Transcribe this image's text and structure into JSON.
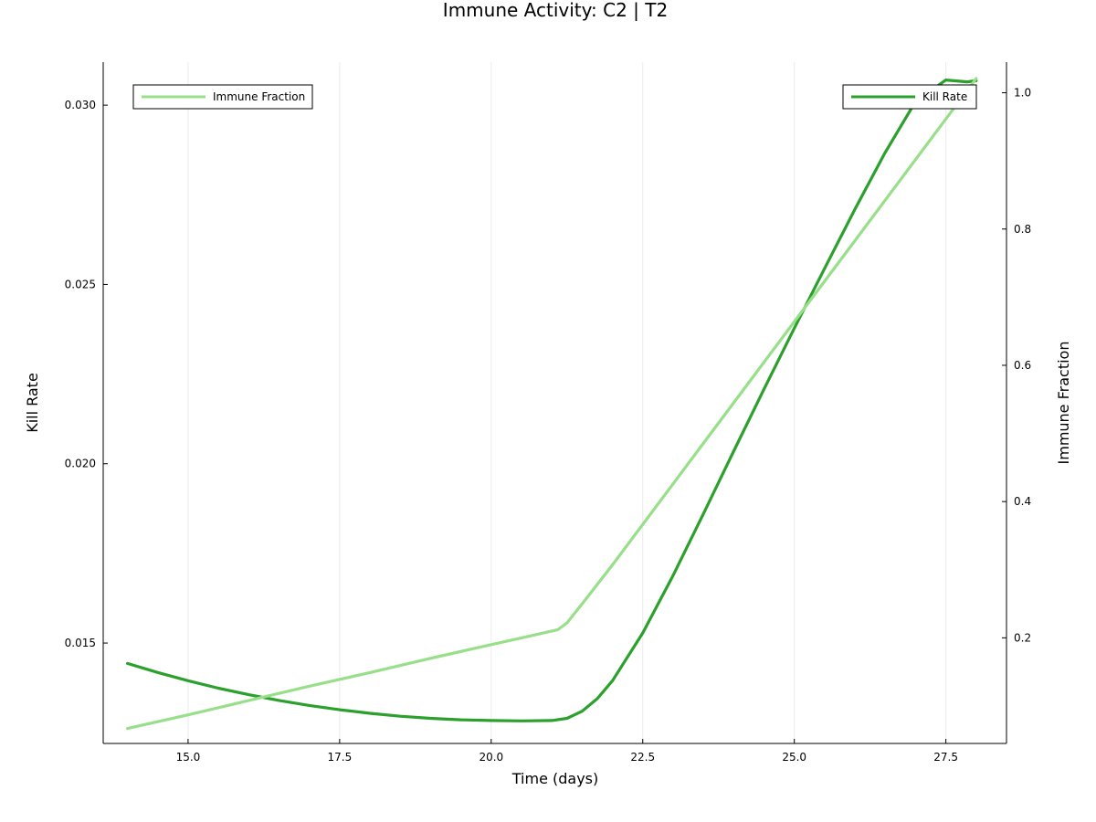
{
  "chart_data": {
    "type": "line",
    "title": "Immune Activity: C2 | T2",
    "xlabel": "Time (days)",
    "ylabel_left": "Kill Rate",
    "ylabel_right": "Immune Fraction",
    "xlim": [
      13.6,
      28.5
    ],
    "ylim_left": [
      0.0122,
      0.0312
    ],
    "ylim_right": [
      0.045,
      1.045
    ],
    "x_ticks": [
      15.0,
      17.5,
      20.0,
      22.5,
      25.0,
      27.5
    ],
    "x_tick_labels": [
      "15.0",
      "17.5",
      "20.0",
      "22.5",
      "25.0",
      "27.5"
    ],
    "y_left_ticks": [
      0.015,
      0.02,
      0.025,
      0.03
    ],
    "y_left_tick_labels": [
      "0.015",
      "0.020",
      "0.025",
      "0.030"
    ],
    "y_right_ticks": [
      0.2,
      0.4,
      0.6,
      0.8,
      1.0
    ],
    "y_right_tick_labels": [
      "0.2",
      "0.4",
      "0.6",
      "0.8",
      "1.0"
    ],
    "grid": true,
    "series": [
      {
        "name": "Kill Rate",
        "axis": "left",
        "color": "#2ca02c",
        "legend_position": "top-right",
        "x": [
          14.0,
          14.5,
          15.0,
          15.5,
          16.0,
          16.5,
          17.0,
          17.5,
          18.0,
          18.5,
          19.0,
          19.5,
          20.0,
          20.5,
          21.0,
          21.25,
          21.5,
          21.75,
          22.0,
          22.5,
          23.0,
          23.5,
          24.0,
          24.5,
          25.0,
          25.5,
          26.0,
          26.5,
          27.0,
          27.5,
          27.85,
          28.0
        ],
        "y": [
          0.01443,
          0.01418,
          0.01395,
          0.01374,
          0.01356,
          0.0134,
          0.01326,
          0.01314,
          0.01304,
          0.01296,
          0.0129,
          0.01286,
          0.01284,
          0.01283,
          0.01284,
          0.0129,
          0.0131,
          0.01345,
          0.01395,
          0.01528,
          0.01688,
          0.0186,
          0.02035,
          0.02208,
          0.02378,
          0.02545,
          0.0271,
          0.02868,
          0.0301,
          0.0307,
          0.03065,
          0.03068
        ]
      },
      {
        "name": "Immune Fraction",
        "axis": "right",
        "color": "#98df8a",
        "legend_position": "top-left",
        "x": [
          14.0,
          15.0,
          16.0,
          17.0,
          18.0,
          19.0,
          20.0,
          20.5,
          21.0,
          21.1,
          21.25,
          21.5,
          22.0,
          23.0,
          24.0,
          25.0,
          26.0,
          27.0,
          28.0
        ],
        "y": [
          0.067,
          0.087,
          0.108,
          0.129,
          0.149,
          0.17,
          0.19,
          0.2,
          0.21,
          0.212,
          0.222,
          0.25,
          0.307,
          0.426,
          0.545,
          0.664,
          0.783,
          0.902,
          1.021
        ]
      }
    ]
  }
}
